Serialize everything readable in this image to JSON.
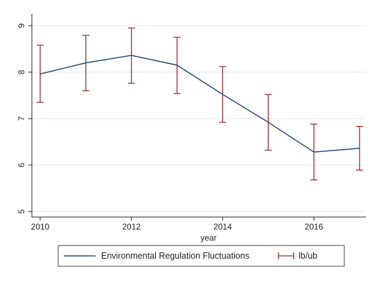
{
  "chart_data": {
    "type": "line",
    "title": "",
    "xlabel": "year",
    "ylabel": "",
    "xlim": [
      2010,
      2017
    ],
    "ylim": [
      5,
      9
    ],
    "x_ticks": [
      2010,
      2012,
      2014,
      2016
    ],
    "y_ticks": [
      5,
      6,
      7,
      8,
      9
    ],
    "grid": true,
    "legend": "bottom",
    "x": [
      2010,
      2011,
      2012,
      2013,
      2014,
      2015,
      2016,
      2017
    ],
    "series": [
      {
        "name": "Environmental Regulation Fluctuations",
        "type": "line",
        "color": "#1f4e79",
        "values": [
          7.96,
          8.2,
          8.36,
          8.15,
          7.52,
          6.92,
          6.28,
          6.36
        ]
      },
      {
        "name": "lb/ub",
        "type": "errorbar",
        "color": "#9b2d2d",
        "lower": [
          7.35,
          7.6,
          7.76,
          7.54,
          6.92,
          6.32,
          5.68,
          5.89
        ],
        "upper": [
          8.58,
          8.79,
          8.95,
          8.75,
          8.12,
          7.52,
          6.88,
          6.83
        ]
      }
    ]
  }
}
